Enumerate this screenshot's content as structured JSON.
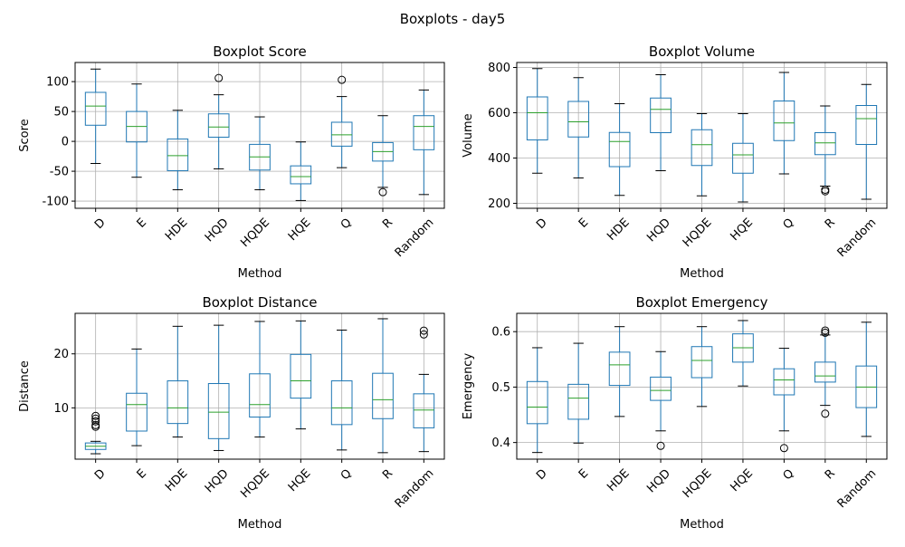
{
  "suptitle": "Boxplots - day5",
  "chart_data": [
    {
      "type": "box",
      "title": "Boxplot Score",
      "xlabel": "Method",
      "ylabel": "Score",
      "categories": [
        "D",
        "E",
        "HDE",
        "HQD",
        "HQDE",
        "HQE",
        "Q",
        "R",
        "Random"
      ],
      "ylim": [
        -112,
        132
      ],
      "yticks": [
        -100,
        -50,
        0,
        50,
        100
      ],
      "grid": true,
      "series": [
        {
          "min": -37,
          "q1": 27,
          "median": 59,
          "q3": 82,
          "max": 121,
          "outliers": []
        },
        {
          "min": -60,
          "q1": -1,
          "median": 25,
          "q3": 50,
          "max": 96,
          "outliers": []
        },
        {
          "min": -81,
          "q1": -49,
          "median": -24,
          "q3": 4,
          "max": 52,
          "outliers": []
        },
        {
          "min": -46,
          "q1": 7,
          "median": 24,
          "q3": 46,
          "max": 78,
          "outliers": [
            106
          ]
        },
        {
          "min": -81,
          "q1": -48,
          "median": -26,
          "q3": -5,
          "max": 41,
          "outliers": []
        },
        {
          "min": -99,
          "q1": -71,
          "median": -59,
          "q3": -41,
          "max": -1,
          "outliers": []
        },
        {
          "min": -44,
          "q1": -8,
          "median": 11,
          "q3": 32,
          "max": 75,
          "outliers": [
            103
          ]
        },
        {
          "min": -77,
          "q1": -33,
          "median": -17,
          "q3": -2,
          "max": 43,
          "outliers": [
            -85
          ]
        },
        {
          "min": -89,
          "q1": -14,
          "median": 25,
          "q3": 43,
          "max": 86,
          "outliers": []
        }
      ]
    },
    {
      "type": "box",
      "title": "Boxplot Volume",
      "xlabel": "Method",
      "ylabel": "Volume",
      "categories": [
        "D",
        "E",
        "HDE",
        "HQD",
        "HQDE",
        "HQE",
        "Q",
        "R",
        "Random"
      ],
      "ylim": [
        178,
        822
      ],
      "yticks": [
        200,
        400,
        600,
        800
      ],
      "grid": true,
      "series": [
        {
          "min": 333,
          "q1": 480,
          "median": 600,
          "q3": 670,
          "max": 795,
          "outliers": []
        },
        {
          "min": 312,
          "q1": 493,
          "median": 560,
          "q3": 650,
          "max": 755,
          "outliers": []
        },
        {
          "min": 235,
          "q1": 362,
          "median": 473,
          "q3": 513,
          "max": 640,
          "outliers": []
        },
        {
          "min": 344,
          "q1": 512,
          "median": 615,
          "q3": 665,
          "max": 768,
          "outliers": []
        },
        {
          "min": 233,
          "q1": 367,
          "median": 459,
          "q3": 525,
          "max": 596,
          "outliers": []
        },
        {
          "min": 206,
          "q1": 333,
          "median": 414,
          "q3": 465,
          "max": 596,
          "outliers": []
        },
        {
          "min": 330,
          "q1": 477,
          "median": 555,
          "q3": 652,
          "max": 778,
          "outliers": []
        },
        {
          "min": 276,
          "q1": 415,
          "median": 467,
          "q3": 512,
          "max": 630,
          "outliers": [
            260,
            253
          ]
        },
        {
          "min": 218,
          "q1": 460,
          "median": 574,
          "q3": 632,
          "max": 725,
          "outliers": []
        }
      ]
    },
    {
      "type": "box",
      "title": "Boxplot Distance",
      "xlabel": "Method",
      "ylabel": "Distance",
      "categories": [
        "D",
        "E",
        "HDE",
        "HQD",
        "HQDE",
        "HQE",
        "Q",
        "R",
        "Random"
      ],
      "ylim": [
        0.5,
        27.5
      ],
      "yticks": [
        10,
        20
      ],
      "grid": true,
      "series": [
        {
          "min": 1.5,
          "q1": 2.3,
          "median": 2.9,
          "q3": 3.5,
          "max": 3.8,
          "outliers": [
            8.5,
            8.0,
            7.5,
            6.8,
            6.5
          ]
        },
        {
          "min": 3.0,
          "q1": 5.7,
          "median": 10.6,
          "q3": 12.7,
          "max": 20.9,
          "outliers": []
        },
        {
          "min": 4.6,
          "q1": 7.1,
          "median": 10.0,
          "q3": 15.0,
          "max": 25.1,
          "outliers": []
        },
        {
          "min": 2.1,
          "q1": 4.3,
          "median": 9.2,
          "q3": 14.5,
          "max": 25.3,
          "outliers": []
        },
        {
          "min": 4.6,
          "q1": 8.3,
          "median": 10.6,
          "q3": 16.3,
          "max": 26.0,
          "outliers": []
        },
        {
          "min": 6.1,
          "q1": 11.8,
          "median": 15.0,
          "q3": 19.9,
          "max": 26.1,
          "outliers": []
        },
        {
          "min": 2.2,
          "q1": 6.9,
          "median": 10.0,
          "q3": 15.0,
          "max": 24.4,
          "outliers": []
        },
        {
          "min": 1.7,
          "q1": 8.0,
          "median": 11.5,
          "q3": 16.4,
          "max": 26.5,
          "outliers": []
        },
        {
          "min": 1.9,
          "q1": 6.3,
          "median": 9.6,
          "q3": 12.6,
          "max": 16.2,
          "outliers": [
            24.3,
            23.6
          ]
        }
      ]
    },
    {
      "type": "box",
      "title": "Boxplot Emergency",
      "xlabel": "Method",
      "ylabel": "Emergency",
      "categories": [
        "D",
        "E",
        "HDE",
        "HQD",
        "HQDE",
        "HQE",
        "Q",
        "R",
        "Random"
      ],
      "ylim": [
        0.37,
        0.633
      ],
      "yticks": [
        0.4,
        0.5,
        0.6
      ],
      "grid": true,
      "series": [
        {
          "min": 0.382,
          "q1": 0.434,
          "median": 0.464,
          "q3": 0.51,
          "max": 0.571,
          "outliers": []
        },
        {
          "min": 0.399,
          "q1": 0.442,
          "median": 0.48,
          "q3": 0.505,
          "max": 0.579,
          "outliers": []
        },
        {
          "min": 0.447,
          "q1": 0.503,
          "median": 0.54,
          "q3": 0.563,
          "max": 0.609,
          "outliers": []
        },
        {
          "min": 0.421,
          "q1": 0.476,
          "median": 0.494,
          "q3": 0.518,
          "max": 0.564,
          "outliers": [
            0.394
          ]
        },
        {
          "min": 0.465,
          "q1": 0.517,
          "median": 0.548,
          "q3": 0.573,
          "max": 0.609,
          "outliers": []
        },
        {
          "min": 0.502,
          "q1": 0.545,
          "median": 0.571,
          "q3": 0.596,
          "max": 0.62,
          "outliers": []
        },
        {
          "min": 0.421,
          "q1": 0.486,
          "median": 0.513,
          "q3": 0.533,
          "max": 0.57,
          "outliers": [
            0.39
          ]
        },
        {
          "min": 0.467,
          "q1": 0.509,
          "median": 0.52,
          "q3": 0.545,
          "max": 0.594,
          "outliers": [
            0.602,
            0.598,
            0.452
          ]
        },
        {
          "min": 0.411,
          "q1": 0.463,
          "median": 0.5,
          "q3": 0.538,
          "max": 0.617,
          "outliers": []
        }
      ]
    }
  ],
  "colors": {
    "box": "#1f77b4",
    "median": "#2ca02c",
    "whisker_cap": "#000000",
    "grid": "#b0b0b0",
    "axes": "#000000"
  }
}
